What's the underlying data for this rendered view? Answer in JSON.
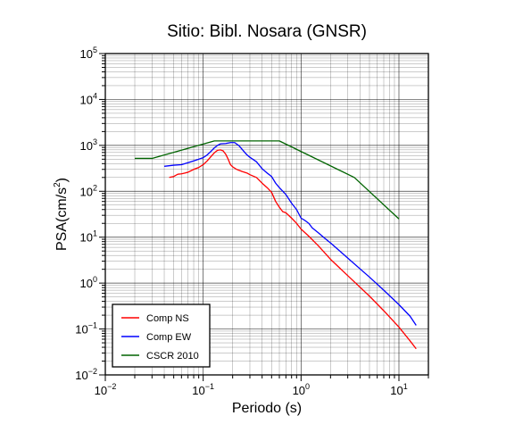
{
  "chart_data": {
    "type": "line",
    "title": "Sitio: Bibl. Nosara (GNSR)",
    "xlabel": "Periodo (s)",
    "ylabel_main": "PSA(cm/s",
    "ylabel_sup": "2",
    "ylabel_close": ")",
    "x_scale": "log",
    "y_scale": "log",
    "xlim": [
      0.01,
      20
    ],
    "ylim": [
      0.01,
      100000
    ],
    "grid": true,
    "legend_position": "bottom-left",
    "x_ticks": [
      {
        "base": "10",
        "exp": "−2",
        "value": 0.01
      },
      {
        "base": "10",
        "exp": "−1",
        "value": 0.1
      },
      {
        "base": "10",
        "exp": "0",
        "value": 1
      },
      {
        "base": "10",
        "exp": "1",
        "value": 10
      }
    ],
    "y_ticks": [
      {
        "base": "10",
        "exp": "−2",
        "value": 0.01
      },
      {
        "base": "10",
        "exp": "−1",
        "value": 0.1
      },
      {
        "base": "10",
        "exp": "0",
        "value": 1
      },
      {
        "base": "10",
        "exp": "1",
        "value": 10
      },
      {
        "base": "10",
        "exp": "2",
        "value": 100
      },
      {
        "base": "10",
        "exp": "3",
        "value": 1000
      },
      {
        "base": "10",
        "exp": "4",
        "value": 10000
      },
      {
        "base": "10",
        "exp": "5",
        "value": 100000
      }
    ],
    "series": [
      {
        "name": "Comp NS",
        "color": "#ff0000",
        "points": [
          [
            0.045,
            200
          ],
          [
            0.05,
            210
          ],
          [
            0.055,
            235
          ],
          [
            0.06,
            240
          ],
          [
            0.065,
            250
          ],
          [
            0.07,
            260
          ],
          [
            0.08,
            300
          ],
          [
            0.09,
            330
          ],
          [
            0.1,
            380
          ],
          [
            0.11,
            460
          ],
          [
            0.12,
            570
          ],
          [
            0.13,
            690
          ],
          [
            0.14,
            780
          ],
          [
            0.15,
            800
          ],
          [
            0.16,
            760
          ],
          [
            0.17,
            640
          ],
          [
            0.18,
            500
          ],
          [
            0.19,
            380
          ],
          [
            0.2,
            340
          ],
          [
            0.22,
            300
          ],
          [
            0.25,
            270
          ],
          [
            0.28,
            250
          ],
          [
            0.3,
            230
          ],
          [
            0.35,
            200
          ],
          [
            0.4,
            150
          ],
          [
            0.45,
            120
          ],
          [
            0.5,
            95
          ],
          [
            0.55,
            60
          ],
          [
            0.6,
            45
          ],
          [
            0.65,
            36
          ],
          [
            0.7,
            34
          ],
          [
            0.8,
            26
          ],
          [
            0.9,
            20
          ],
          [
            1.0,
            15
          ],
          [
            1.2,
            10.5
          ],
          [
            1.5,
            6.5
          ],
          [
            2.0,
            3.3
          ],
          [
            3.0,
            1.45
          ],
          [
            5.0,
            0.52
          ],
          [
            7.0,
            0.25
          ],
          [
            10.0,
            0.11
          ],
          [
            13.0,
            0.055
          ],
          [
            15.0,
            0.037
          ]
        ]
      },
      {
        "name": "Comp EW",
        "color": "#0000ff",
        "points": [
          [
            0.04,
            350
          ],
          [
            0.05,
            370
          ],
          [
            0.06,
            380
          ],
          [
            0.07,
            420
          ],
          [
            0.08,
            460
          ],
          [
            0.09,
            500
          ],
          [
            0.1,
            540
          ],
          [
            0.11,
            620
          ],
          [
            0.12,
            740
          ],
          [
            0.13,
            880
          ],
          [
            0.14,
            1000
          ],
          [
            0.15,
            1080
          ],
          [
            0.17,
            1100
          ],
          [
            0.19,
            1150
          ],
          [
            0.21,
            1150
          ],
          [
            0.23,
            1000
          ],
          [
            0.25,
            820
          ],
          [
            0.28,
            620
          ],
          [
            0.3,
            550
          ],
          [
            0.35,
            440
          ],
          [
            0.4,
            310
          ],
          [
            0.45,
            250
          ],
          [
            0.5,
            210
          ],
          [
            0.55,
            150
          ],
          [
            0.6,
            120
          ],
          [
            0.7,
            85
          ],
          [
            0.8,
            55
          ],
          [
            0.9,
            40
          ],
          [
            1.0,
            26
          ],
          [
            1.1,
            23
          ],
          [
            1.2,
            20
          ],
          [
            1.3,
            16
          ],
          [
            1.5,
            12.5
          ],
          [
            1.8,
            9
          ],
          [
            2.0,
            7.5
          ],
          [
            3.0,
            3.5
          ],
          [
            5.0,
            1.35
          ],
          [
            7.0,
            0.7
          ],
          [
            10.0,
            0.34
          ],
          [
            13.0,
            0.19
          ],
          [
            15.0,
            0.12
          ]
        ]
      },
      {
        "name": "CSCR 2010",
        "color": "#006400",
        "points": [
          [
            0.02,
            520
          ],
          [
            0.03,
            520
          ],
          [
            0.13,
            1250
          ],
          [
            0.6,
            1250
          ],
          [
            3.5,
            200
          ],
          [
            10.0,
            25
          ]
        ]
      }
    ]
  }
}
